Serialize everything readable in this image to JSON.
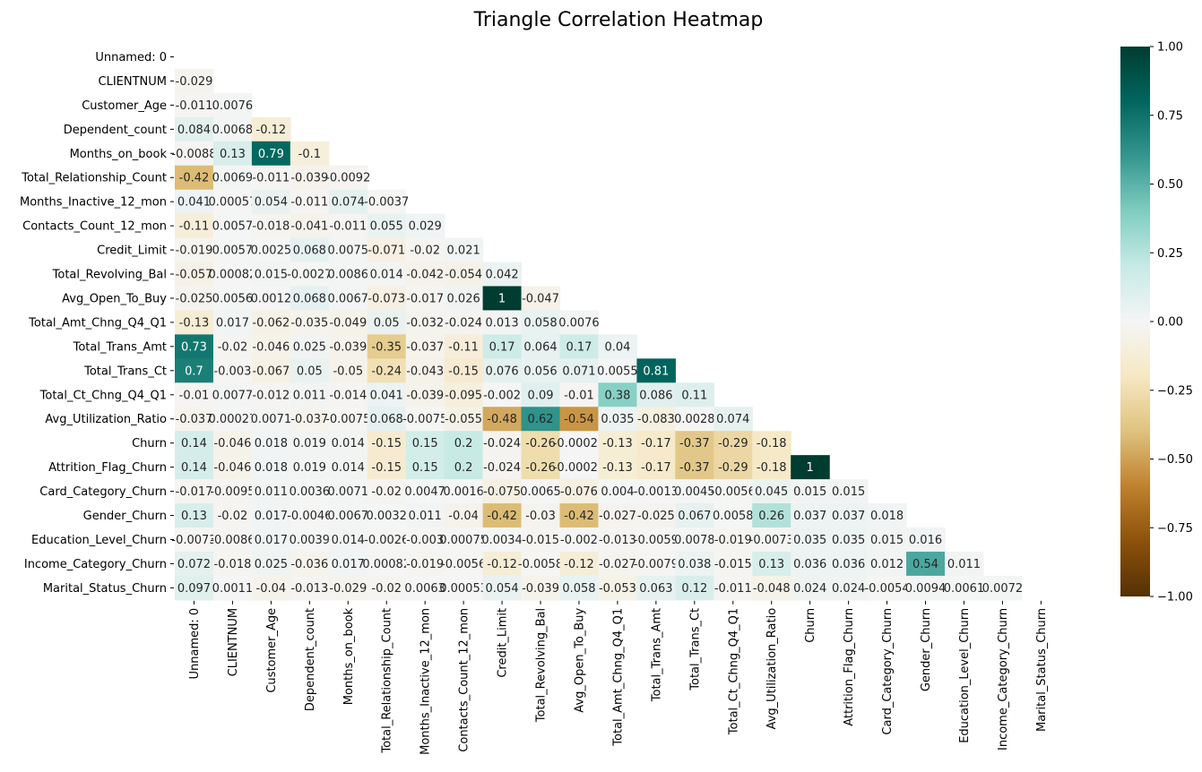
{
  "chart_data": {
    "type": "heatmap",
    "title": "Triangle Correlation Heatmap",
    "xlabel": "",
    "ylabel": "",
    "labels": [
      "Unnamed: 0",
      "CLIENTNUM",
      "Customer_Age",
      "Dependent_count",
      "Months_on_book",
      "Total_Relationship_Count",
      "Months_Inactive_12_mon",
      "Contacts_Count_12_mon",
      "Credit_Limit",
      "Total_Revolving_Bal",
      "Avg_Open_To_Buy",
      "Total_Amt_Chng_Q4_Q1",
      "Total_Trans_Amt",
      "Total_Trans_Ct",
      "Total_Ct_Chng_Q4_Q1",
      "Avg_Utilization_Ratio",
      "Churn",
      "Attrition_Flag_Churn",
      "Card_Category_Churn",
      "Gender_Churn",
      "Education_Level_Churn",
      "Income_Category_Churn",
      "Marital_Status_Churn"
    ],
    "rows": [
      [],
      [
        "-0.029"
      ],
      [
        "-0.011",
        "0.0076"
      ],
      [
        "0.084",
        "0.0068",
        "-0.12"
      ],
      [
        "-0.0088",
        "0.13",
        "0.79",
        "-0.1"
      ],
      [
        "-0.42",
        "0.0069",
        "-0.011",
        "-0.039",
        "-0.0092"
      ],
      [
        "0.041",
        "0.00057",
        "0.054",
        "-0.011",
        "0.074",
        "-0.0037"
      ],
      [
        "-0.11",
        "0.0057",
        "-0.018",
        "-0.041",
        "-0.011",
        "0.055",
        "0.029"
      ],
      [
        "-0.019",
        "0.0057",
        "0.0025",
        "0.068",
        "0.0075",
        "-0.071",
        "-0.02",
        "0.021"
      ],
      [
        "-0.057",
        "0.00082",
        "0.015",
        "-0.0027",
        "0.0086",
        "0.014",
        "-0.042",
        "-0.054",
        "0.042"
      ],
      [
        "-0.025",
        "0.0056",
        "0.0012",
        "0.068",
        "0.0067",
        "-0.073",
        "-0.017",
        "0.026",
        "1",
        "-0.047"
      ],
      [
        "-0.13",
        "0.017",
        "-0.062",
        "-0.035",
        "-0.049",
        "0.05",
        "-0.032",
        "-0.024",
        "0.013",
        "0.058",
        "0.0076"
      ],
      [
        "0.73",
        "-0.02",
        "-0.046",
        "0.025",
        "-0.039",
        "-0.35",
        "-0.037",
        "-0.11",
        "0.17",
        "0.064",
        "0.17",
        "0.04"
      ],
      [
        "0.7",
        "-0.003",
        "-0.067",
        "0.05",
        "-0.05",
        "-0.24",
        "-0.043",
        "-0.15",
        "0.076",
        "0.056",
        "0.071",
        "0.0055",
        "0.81"
      ],
      [
        "-0.01",
        "0.0077",
        "-0.012",
        "0.011",
        "-0.014",
        "0.041",
        "-0.039",
        "-0.095",
        "-0.002",
        "0.09",
        "-0.01",
        "0.38",
        "0.086",
        "0.11"
      ],
      [
        "-0.037",
        "0.00027",
        "0.0071",
        "-0.037",
        "-0.0075",
        "0.068",
        "-0.0075",
        "-0.055",
        "-0.48",
        "0.62",
        "-0.54",
        "0.035",
        "-0.083",
        "0.0028",
        "0.074"
      ],
      [
        "0.14",
        "-0.046",
        "0.018",
        "0.019",
        "0.014",
        "-0.15",
        "0.15",
        "0.2",
        "-0.024",
        "-0.26",
        "-0.00029",
        "-0.13",
        "-0.17",
        "-0.37",
        "-0.29",
        "-0.18"
      ],
      [
        "0.14",
        "-0.046",
        "0.018",
        "0.019",
        "0.014",
        "-0.15",
        "0.15",
        "0.2",
        "-0.024",
        "-0.26",
        "-0.00029",
        "-0.13",
        "-0.17",
        "-0.37",
        "-0.29",
        "-0.18",
        "1"
      ],
      [
        "-0.017",
        "-0.0095",
        "0.011",
        "0.0036",
        "0.0071",
        "-0.02",
        "0.0047",
        "0.0016",
        "-0.075",
        "0.0065",
        "-0.076",
        "0.004",
        "-0.0013",
        "0.0045",
        "-0.0056",
        "0.045",
        "0.015",
        "0.015"
      ],
      [
        "0.13",
        "-0.02",
        "0.017",
        "-0.0046",
        "0.0067",
        "0.0032",
        "0.011",
        "-0.04",
        "-0.42",
        "-0.03",
        "-0.42",
        "-0.027",
        "-0.025",
        "0.067",
        "0.0058",
        "0.26",
        "0.037",
        "0.037",
        "0.018"
      ],
      [
        "-0.0073",
        "-0.0086",
        "0.017",
        "0.0039",
        "0.014",
        "-0.0026",
        "-0.003",
        "0.00075",
        "0.0034",
        "-0.015",
        "-0.002",
        "-0.013",
        "-0.0059",
        "0.0078",
        "-0.019",
        "-0.0073",
        "0.035",
        "0.035",
        "0.015",
        "0.016"
      ],
      [
        "0.072",
        "-0.018",
        "0.025",
        "-0.036",
        "0.017",
        "0.00082",
        "-0.019",
        "-0.0056",
        "-0.12",
        "-0.0058",
        "-0.12",
        "-0.027",
        "-0.0079",
        "0.038",
        "-0.015",
        "0.13",
        "0.036",
        "0.036",
        "0.012",
        "0.54",
        "0.011"
      ],
      [
        "0.097",
        "0.0011",
        "-0.04",
        "-0.013",
        "-0.029",
        "-0.02",
        "0.0063",
        "0.00053",
        "0.054",
        "-0.039",
        "0.058",
        "-0.053",
        "0.063",
        "0.12",
        "-0.011",
        "-0.048",
        "0.024",
        "0.024",
        "-0.0054",
        "0.0094",
        "0.0061",
        "0.0072"
      ]
    ],
    "colormap": "BrBG",
    "vmin": -1,
    "vmax": 1,
    "colorbar_ticks": [
      "1.00",
      "0.75",
      "0.50",
      "0.25",
      "0.00",
      "−0.25",
      "−0.50",
      "−0.75",
      "−1.00"
    ],
    "mask": "upper-triangle"
  }
}
